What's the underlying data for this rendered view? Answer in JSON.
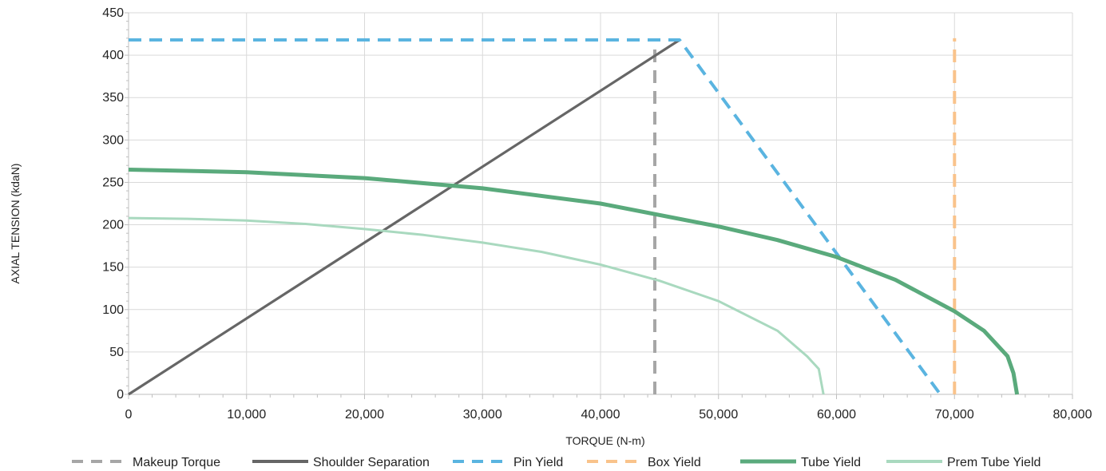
{
  "chart_data": {
    "type": "line",
    "xlabel": "TORQUE (N-m)",
    "ylabel": "AXIAL TENSION (kdaN)",
    "xlim": [
      0,
      80000
    ],
    "ylim": [
      0,
      450
    ],
    "xticks": [
      0,
      10000,
      20000,
      30000,
      40000,
      50000,
      60000,
      70000,
      80000
    ],
    "xtick_labels": [
      "0",
      "10,000",
      "20,000",
      "30,000",
      "40,000",
      "50,000",
      "60,000",
      "70,000",
      "80,000"
    ],
    "yticks": [
      0,
      50,
      100,
      150,
      200,
      250,
      300,
      350,
      400,
      450
    ],
    "ytick_labels": [
      "0",
      "50",
      "100",
      "150",
      "200",
      "250",
      "300",
      "350",
      "400",
      "450"
    ],
    "grid": true,
    "legend_position": "bottom",
    "series": [
      {
        "name": "Makeup Torque",
        "color": "#a6a6a6",
        "style": "dashed",
        "x": [
          44600,
          44600
        ],
        "y": [
          0,
          418
        ]
      },
      {
        "name": "Shoulder Separation",
        "color": "#666666",
        "style": "solid",
        "x": [
          0,
          46700
        ],
        "y": [
          0,
          418
        ]
      },
      {
        "name": "Pin Yield",
        "color": "#5ab4e0",
        "style": "dashed",
        "x": [
          0,
          46700,
          68800
        ],
        "y": [
          418,
          418,
          0
        ]
      },
      {
        "name": "Box Yield",
        "color": "#f9c38b",
        "style": "dashed",
        "x": [
          70000,
          70000
        ],
        "y": [
          0,
          420
        ]
      },
      {
        "name": "Tube Yield",
        "color": "#5aaa7c",
        "style": "solid-thick",
        "x": [
          0,
          10000,
          20000,
          30000,
          40000,
          50000,
          55000,
          60000,
          65000,
          70000,
          72500,
          74500,
          75000,
          75300
        ],
        "y": [
          265,
          262,
          255,
          243,
          225,
          198,
          182,
          162,
          135,
          98,
          75,
          45,
          25,
          0
        ]
      },
      {
        "name": "Prem Tube Yield",
        "color": "#a9d9bf",
        "style": "solid",
        "x": [
          0,
          5000,
          10000,
          15000,
          20000,
          25000,
          30000,
          35000,
          40000,
          45000,
          50000,
          55000,
          57500,
          58500,
          58900
        ],
        "y": [
          208,
          207,
          205,
          201,
          195,
          188,
          179,
          168,
          153,
          134,
          110,
          75,
          45,
          30,
          0
        ]
      }
    ]
  }
}
